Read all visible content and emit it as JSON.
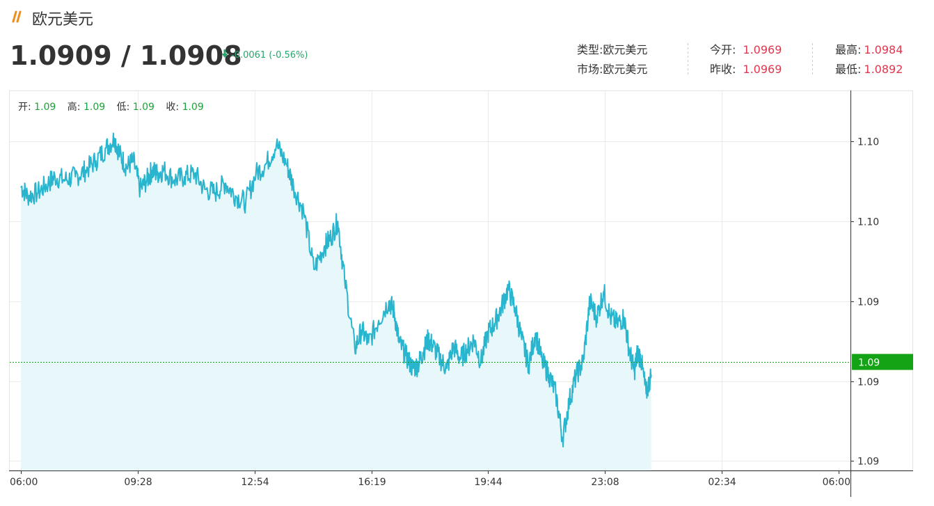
{
  "header": {
    "title": "欧元美元",
    "bid": "1.0909",
    "slash": "/",
    "ask": "1.0908",
    "change": "-0.0061 (-0.56%)"
  },
  "info": {
    "type_label": "类型:",
    "type_value": "欧元美元",
    "market_label": "市场:",
    "market_value": "欧元美元",
    "open_label": "今开:",
    "open_value": "1.0969",
    "prev_close_label": "昨收:",
    "prev_close_value": "1.0969",
    "high_label": "最高:",
    "high_value": "1.0984",
    "low_label": "最低:",
    "low_value": "1.0892"
  },
  "ohlc": {
    "open_label": "开",
    "open_value": "1.09",
    "high_label": "高",
    "high_value": "1.09",
    "low_label": "低",
    "low_value": "1.09",
    "close_label": "收",
    "close_value": "1.09"
  },
  "colors": {
    "line": "#2ab5cf",
    "area": "#e8f7fa",
    "up_red": "#e0364e",
    "down_green": "#2aa36b",
    "current_price_green": "#14a314"
  },
  "chart_data": {
    "type": "area",
    "x_ticks": [
      "06:00",
      "09:28",
      "12:54",
      "16:19",
      "19:44",
      "23:08",
      "02:34",
      "06:00"
    ],
    "y_tick_labels": [
      "1.10",
      "1.10",
      "1.09",
      "1.09",
      "1.09"
    ],
    "y_tick_values": [
      1.0985,
      1.096,
      1.0935,
      1.091,
      1.0885
    ],
    "ylim": [
      1.0882,
      1.1001
    ],
    "current_price_label": "1.09",
    "current_price_value": 1.0916,
    "series_x_hours": [
      0,
      0.2,
      0.5,
      0.8,
      1.0,
      1.3,
      1.6,
      1.9,
      2.2,
      2.5,
      2.75,
      2.9,
      3.1,
      3.3,
      3.5,
      3.7,
      3.85,
      4.0,
      4.2,
      4.5,
      4.8,
      5.1,
      5.4,
      5.7,
      6.0,
      6.3,
      6.6,
      6.9,
      7.2,
      7.5,
      7.8,
      8.0,
      8.3,
      8.6,
      8.9,
      9.1,
      9.3,
      9.5,
      9.8,
      10.0,
      10.2,
      10.5,
      10.8,
      10.95,
      11.1,
      11.3,
      11.5,
      11.65,
      11.8,
      11.95,
      12.1,
      12.3,
      12.5,
      12.7,
      12.9,
      13.1,
      13.3,
      13.5,
      13.7,
      13.9,
      14.1,
      14.3,
      14.5,
      14.7,
      14.9,
      15.1,
      15.3,
      15.5,
      15.7,
      15.9,
      16.1,
      16.3,
      16.5,
      16.7,
      16.9,
      17.1,
      17.3,
      17.5,
      17.7,
      17.85,
      18.0,
      18.1,
      18.2,
      18.35,
      18.5
    ],
    "series_values": [
      1.0971,
      1.0968,
      1.0969,
      1.0972,
      1.0974,
      1.0973,
      1.0974,
      1.0976,
      1.0979,
      1.0983,
      1.0986,
      1.0981,
      1.0977,
      1.0979,
      1.097,
      1.0973,
      1.0976,
      1.0975,
      1.0976,
      1.0973,
      1.0974,
      1.0975,
      1.097,
      1.0969,
      1.0972,
      1.0968,
      1.0966,
      1.0975,
      1.0978,
      1.0984,
      1.0978,
      1.0971,
      1.0963,
      1.0945,
      1.0952,
      1.0955,
      1.096,
      1.0942,
      1.092,
      1.0926,
      1.0922,
      1.0929,
      1.0935,
      1.0932,
      1.0922,
      1.0918,
      1.0914,
      1.0915,
      1.0919,
      1.0923,
      1.0921,
      1.0917,
      1.0914,
      1.0921,
      1.0917,
      1.092,
      1.0923,
      1.0916,
      1.0925,
      1.0928,
      1.0933,
      1.0939,
      1.0933,
      1.0923,
      1.0915,
      1.0925,
      1.0916,
      1.0912,
      1.0906,
      1.0892,
      1.0904,
      1.0912,
      1.0916,
      1.0935,
      1.093,
      1.0938,
      1.093,
      1.0928,
      1.093,
      1.092,
      1.0913,
      1.0919,
      1.0917,
      1.0906,
      1.0912
    ]
  }
}
